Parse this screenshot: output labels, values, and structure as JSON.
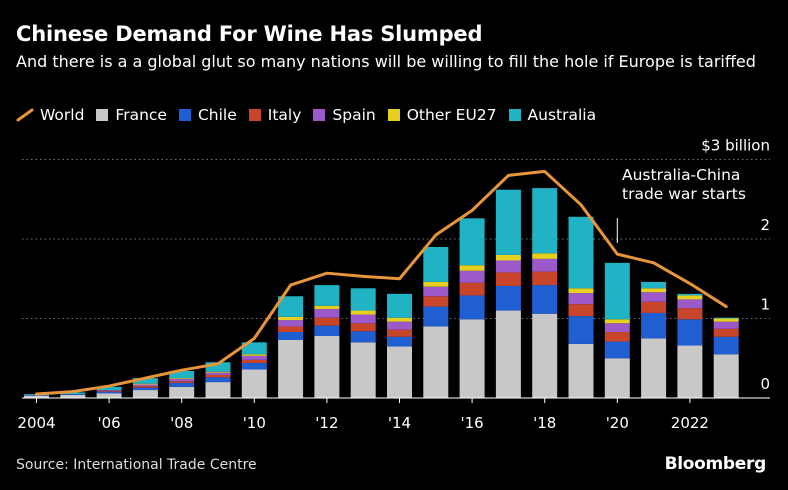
{
  "title": "Chinese Demand For Wine Has Slumped",
  "subtitle": "And there is a a global glut so many nations will be willing to fill the hole if Europe is tariffed",
  "source": "Source: International Trade Centre",
  "brand": "Bloomberg",
  "colors": {
    "World": "#e8953a",
    "France": "#c8c8c8",
    "Chile": "#1f5fd1",
    "Italy": "#c8442a",
    "Spain": "#9b59c9",
    "Other EU27": "#e6cf1f",
    "Australia": "#1fb3c4"
  },
  "legend": [
    "World",
    "France",
    "Chile",
    "Italy",
    "Spain",
    "Other EU27",
    "Australia"
  ],
  "chart_data": {
    "type": "bar",
    "stacked": true,
    "title": "Chinese Demand For Wine Has Slumped",
    "ylabel": "$ billion",
    "ylim": [
      0,
      3
    ],
    "y_ticks": [
      0,
      1,
      2,
      3
    ],
    "y_tick_labels": [
      "0",
      "1",
      "2",
      "$3 billion"
    ],
    "categories": [
      2004,
      2005,
      2006,
      2007,
      2008,
      2009,
      2010,
      2011,
      2012,
      2013,
      2014,
      2015,
      2016,
      2017,
      2018,
      2019,
      2020,
      2021,
      2022,
      2023
    ],
    "x_tick_labels": {
      "2004": "2004",
      "2006": "'06",
      "2008": "'08",
      "2010": "'10",
      "2012": "'12",
      "2014": "'14",
      "2016": "'16",
      "2018": "'18",
      "2020": "'20",
      "2022": "2022"
    },
    "series": [
      {
        "name": "France",
        "values": [
          0.03,
          0.04,
          0.06,
          0.1,
          0.14,
          0.2,
          0.36,
          0.73,
          0.78,
          0.7,
          0.65,
          0.9,
          0.99,
          1.1,
          1.06,
          0.68,
          0.5,
          0.75,
          0.66,
          0.55
        ]
      },
      {
        "name": "Chile",
        "values": [
          0.01,
          0.01,
          0.02,
          0.03,
          0.05,
          0.06,
          0.08,
          0.1,
          0.13,
          0.14,
          0.12,
          0.25,
          0.3,
          0.31,
          0.36,
          0.35,
          0.21,
          0.32,
          0.33,
          0.22
        ]
      },
      {
        "name": "Italy",
        "values": [
          0.0,
          0.0,
          0.01,
          0.02,
          0.02,
          0.03,
          0.04,
          0.07,
          0.1,
          0.1,
          0.09,
          0.13,
          0.16,
          0.17,
          0.17,
          0.15,
          0.12,
          0.14,
          0.14,
          0.1
        ]
      },
      {
        "name": "Spain",
        "values": [
          0.0,
          0.0,
          0.01,
          0.02,
          0.03,
          0.03,
          0.05,
          0.08,
          0.11,
          0.11,
          0.1,
          0.12,
          0.15,
          0.15,
          0.16,
          0.14,
          0.11,
          0.12,
          0.11,
          0.09
        ]
      },
      {
        "name": "Other EU27",
        "values": [
          0.0,
          0.0,
          0.0,
          0.01,
          0.01,
          0.01,
          0.02,
          0.04,
          0.04,
          0.05,
          0.05,
          0.06,
          0.07,
          0.07,
          0.07,
          0.06,
          0.05,
          0.05,
          0.05,
          0.04
        ]
      },
      {
        "name": "Australia",
        "values": [
          0.01,
          0.02,
          0.04,
          0.07,
          0.09,
          0.12,
          0.15,
          0.26,
          0.26,
          0.28,
          0.3,
          0.44,
          0.59,
          0.82,
          0.82,
          0.9,
          0.71,
          0.08,
          0.02,
          0.01
        ]
      }
    ],
    "line": {
      "name": "World",
      "values": [
        0.05,
        0.08,
        0.15,
        0.25,
        0.35,
        0.43,
        0.75,
        1.42,
        1.57,
        1.53,
        1.5,
        2.05,
        2.36,
        2.8,
        2.85,
        2.43,
        1.81,
        1.7,
        1.44,
        1.15
      ]
    },
    "annotations": [
      {
        "text": "Australia-China trade war starts",
        "year": 2020
      }
    ]
  }
}
